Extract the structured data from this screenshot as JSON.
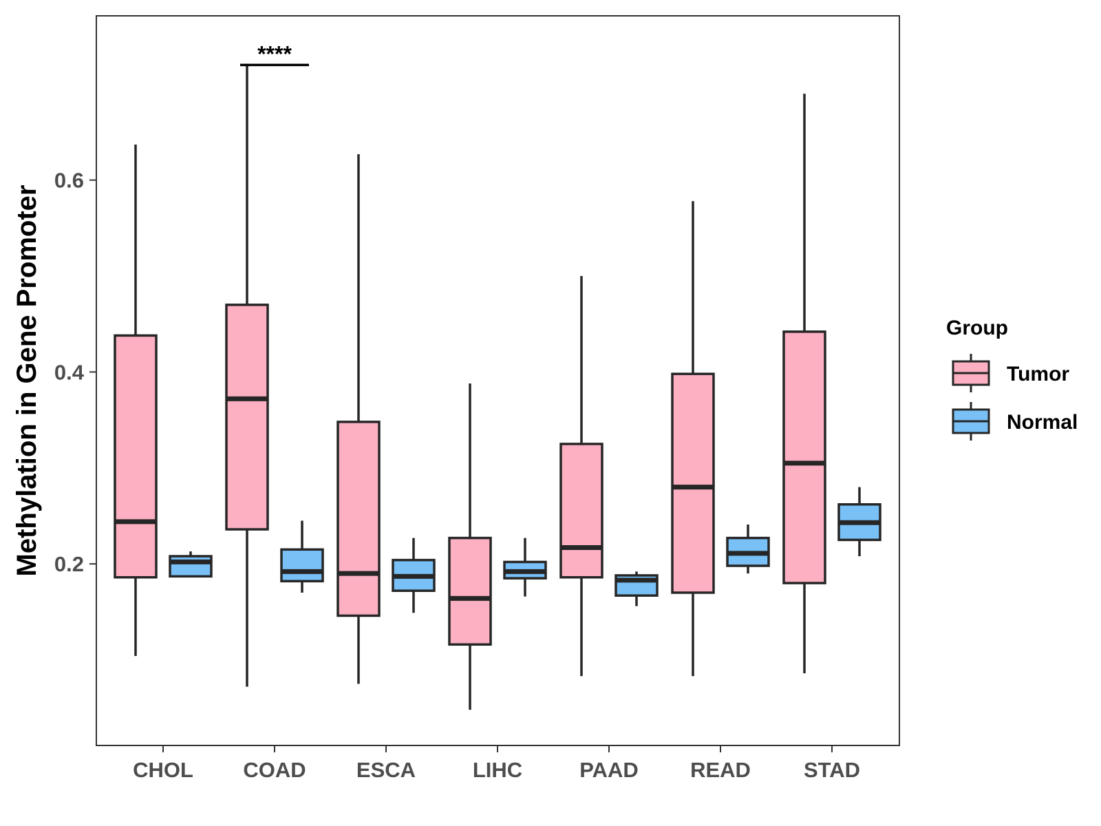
{
  "chart_data": {
    "type": "boxplot",
    "title": "",
    "xlabel": "",
    "ylabel": "Methylation in Gene Promoter",
    "ylim": [
      0.015,
      0.78
    ],
    "yticks": [
      0.2,
      0.4,
      0.6
    ],
    "ytick_labels": [
      "0.2",
      "0.4",
      "0.6"
    ],
    "categories": [
      "CHOL",
      "COAD",
      "ESCA",
      "LIHC",
      "PAAD",
      "READ",
      "STAD"
    ],
    "legend": {
      "title": "Group",
      "position": "right",
      "entries": [
        {
          "name": "Tumor",
          "color": "#FCB0C2"
        },
        {
          "name": "Normal",
          "color": "#78C0F5"
        }
      ]
    },
    "series": [
      {
        "name": "Tumor",
        "color": "#FCB0C2",
        "boxes": [
          {
            "min": 0.104,
            "q1": 0.186,
            "median": 0.244,
            "q3": 0.438,
            "max": 0.637
          },
          {
            "min": 0.072,
            "q1": 0.236,
            "median": 0.372,
            "q3": 0.47,
            "max": 0.721
          },
          {
            "min": 0.075,
            "q1": 0.146,
            "median": 0.19,
            "q3": 0.348,
            "max": 0.627
          },
          {
            "min": 0.048,
            "q1": 0.116,
            "median": 0.164,
            "q3": 0.227,
            "max": 0.388
          },
          {
            "min": 0.083,
            "q1": 0.186,
            "median": 0.217,
            "q3": 0.325,
            "max": 0.5
          },
          {
            "min": 0.083,
            "q1": 0.17,
            "median": 0.28,
            "q3": 0.398,
            "max": 0.578
          },
          {
            "min": 0.086,
            "q1": 0.18,
            "median": 0.305,
            "q3": 0.442,
            "max": 0.69
          }
        ]
      },
      {
        "name": "Normal",
        "color": "#78C0F5",
        "boxes": [
          {
            "min": 0.186,
            "q1": 0.187,
            "median": 0.202,
            "q3": 0.208,
            "max": 0.213
          },
          {
            "min": 0.17,
            "q1": 0.182,
            "median": 0.192,
            "q3": 0.215,
            "max": 0.245
          },
          {
            "min": 0.149,
            "q1": 0.172,
            "median": 0.187,
            "q3": 0.204,
            "max": 0.227
          },
          {
            "min": 0.166,
            "q1": 0.185,
            "median": 0.192,
            "q3": 0.202,
            "max": 0.227
          },
          {
            "min": 0.156,
            "q1": 0.167,
            "median": 0.183,
            "q3": 0.188,
            "max": 0.192
          },
          {
            "min": 0.19,
            "q1": 0.198,
            "median": 0.211,
            "q3": 0.227,
            "max": 0.241
          },
          {
            "min": 0.208,
            "q1": 0.225,
            "median": 0.243,
            "q3": 0.262,
            "max": 0.28
          }
        ]
      }
    ],
    "annotations": [
      {
        "category": "COAD",
        "text": "****",
        "y": 0.72
      }
    ]
  }
}
